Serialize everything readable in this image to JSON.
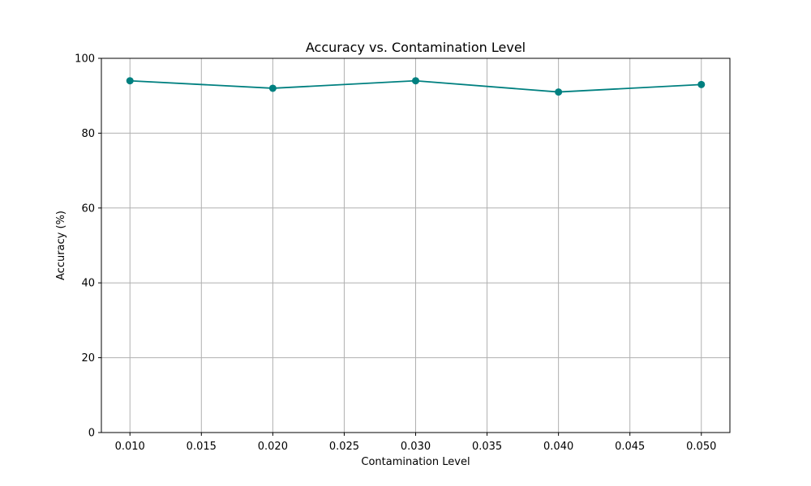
{
  "chart_data": {
    "type": "line",
    "title": "Accuracy vs. Contamination Level",
    "xlabel": "Contamination Level",
    "ylabel": "Accuracy (%)",
    "xlim": [
      0.008,
      0.052
    ],
    "ylim": [
      0,
      100
    ],
    "x_ticks": [
      "0.010",
      "0.015",
      "0.020",
      "0.025",
      "0.030",
      "0.035",
      "0.040",
      "0.045",
      "0.050"
    ],
    "x_tick_values": [
      0.01,
      0.015,
      0.02,
      0.025,
      0.03,
      0.035,
      0.04,
      0.045,
      0.05
    ],
    "y_ticks": [
      "0",
      "20",
      "40",
      "60",
      "80",
      "100"
    ],
    "y_tick_values": [
      0,
      20,
      40,
      60,
      80,
      100
    ],
    "grid": true,
    "series": [
      {
        "x": [
          0.01,
          0.02,
          0.03,
          0.04,
          0.05
        ],
        "values": [
          94,
          92,
          94,
          91,
          93
        ],
        "color": "#008080",
        "marker": "circle"
      }
    ]
  }
}
